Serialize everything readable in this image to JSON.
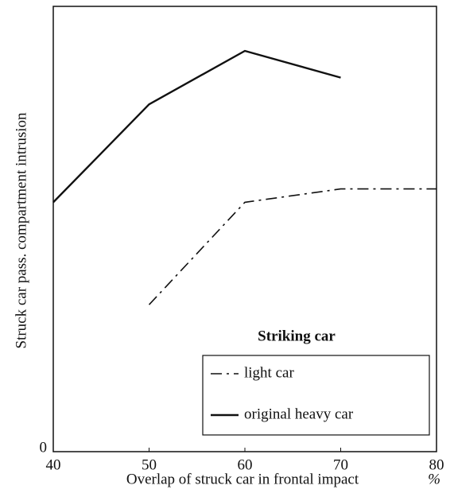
{
  "chart_data": {
    "type": "line",
    "xlabel": "Overlap of struck car in frontal impact",
    "x_unit": "%",
    "ylabel": "Struck car pass. compartment intrusion",
    "x": [
      40,
      50,
      60,
      70,
      80
    ],
    "xlim": [
      40,
      80
    ],
    "xticks": [
      40,
      50,
      60,
      70,
      80
    ],
    "ylim": [
      0,
      100
    ],
    "yticks": [
      0
    ],
    "legend_title": "Striking car",
    "legend_position": "lower right",
    "series": [
      {
        "name": "light car",
        "color": "#111111",
        "dash": "dashdot",
        "values": [
          null,
          33,
          56,
          59,
          59
        ]
      },
      {
        "name": "original heavy car",
        "color": "#111111",
        "dash": "solid",
        "values": [
          56,
          78,
          90,
          84,
          null
        ]
      }
    ]
  }
}
